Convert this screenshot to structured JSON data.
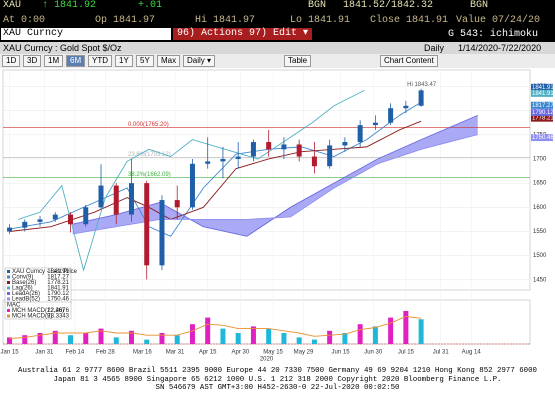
{
  "header": {
    "symbol": "XAU",
    "price": "↑ 1841.92",
    "change": "+.01",
    "source": "BGN",
    "bid_ask": "1841.52/1842.32",
    "source2": "BGN",
    "stats": [
      "At 0:00",
      "Op 1841.97",
      "Hi 1841.97",
      "Lo 1841.91",
      "Close 1841.91",
      "Value 07/24/20"
    ]
  },
  "toolbar": {
    "ticker": "XAU Curncy",
    "actions": "96) Actions ▾",
    "edit": "97) Edit ▾",
    "template": "G 543: ichimoku",
    "description": "XAU Curncy : Gold Spot $/Oz",
    "frequency": "Daily",
    "range": "1/14/2020-7/22/2020",
    "periods": [
      "1D",
      "3D",
      "1M",
      "6M",
      "YTD",
      "1Y",
      "5Y",
      "Max",
      "Daily ▾"
    ],
    "selected": "6M",
    "table": "Table",
    "content": "Chart Content"
  },
  "chart_data": {
    "type": "candlestick",
    "up_color": "#1f5fa8",
    "down_color": "#b01c2e",
    "xlim": [
      "2020-01-12",
      "2020-09-10"
    ],
    "ylim": [
      1429,
      1884
    ],
    "yticks": [
      1450,
      1500,
      1550,
      1600,
      1650,
      1700,
      1750,
      1800,
      1850
    ],
    "xticks": [
      {
        "value": "2020-01-15",
        "label": "Jan 15"
      },
      {
        "value": "2020-01-31",
        "label": "Jan 31"
      },
      {
        "value": "2020-02-14",
        "label": "Feb 14"
      },
      {
        "value": "2020-02-28",
        "label": "Feb 28"
      },
      {
        "value": "2020-03-16",
        "label": "Mar 16"
      },
      {
        "value": "2020-03-31",
        "label": "Mar 31"
      },
      {
        "value": "2020-04-15",
        "label": "Apr 15"
      },
      {
        "value": "2020-04-30",
        "label": "Apr 30"
      },
      {
        "value": "2020-05-15",
        "label": "May 15"
      },
      {
        "value": "2020-05-29",
        "label": "May 29"
      },
      {
        "value": "2020-06-15",
        "label": "Jun 15"
      },
      {
        "value": "2020-06-30",
        "label": "Jun 30"
      },
      {
        "value": "2020-07-15",
        "label": "Jul 15"
      },
      {
        "value": "2020-07-31",
        "label": "Jul 31"
      },
      {
        "value": "2020-08-14",
        "label": "Aug 14"
      }
    ],
    "year_label": "2020",
    "grid": true,
    "x": [
      "2020-01-15",
      "2020-01-22",
      "2020-01-29",
      "2020-02-05",
      "2020-02-12",
      "2020-02-19",
      "2020-02-26",
      "2020-03-04",
      "2020-03-11",
      "2020-03-18",
      "2020-03-25",
      "2020-04-01",
      "2020-04-08",
      "2020-04-15",
      "2020-04-22",
      "2020-04-29",
      "2020-05-06",
      "2020-05-13",
      "2020-05-20",
      "2020-05-27",
      "2020-06-03",
      "2020-06-10",
      "2020-06-17",
      "2020-06-24",
      "2020-07-01",
      "2020-07-08",
      "2020-07-15",
      "2020-07-22"
    ],
    "open": [
      1550,
      1558,
      1570,
      1575,
      1585,
      1565,
      1600,
      1645,
      1585,
      1650,
      1480,
      1615,
      1600,
      1690,
      1695,
      1700,
      1705,
      1735,
      1720,
      1730,
      1705,
      1685,
      1728,
      1735,
      1770,
      1775,
      1805,
      1810
    ],
    "high": [
      1565,
      1575,
      1582,
      1590,
      1590,
      1605,
      1689,
      1650,
      1700,
      1655,
      1625,
      1645,
      1700,
      1745,
      1725,
      1735,
      1740,
      1760,
      1745,
      1740,
      1735,
      1740,
      1745,
      1780,
      1790,
      1815,
      1820,
      1845
    ],
    "low": [
      1545,
      1550,
      1560,
      1570,
      1548,
      1560,
      1595,
      1565,
      1570,
      1451,
      1470,
      1575,
      1595,
      1680,
      1660,
      1680,
      1695,
      1705,
      1700,
      1695,
      1670,
      1680,
      1715,
      1725,
      1760,
      1770,
      1795,
      1808
    ],
    "close": [
      1558,
      1570,
      1575,
      1585,
      1565,
      1600,
      1645,
      1585,
      1650,
      1480,
      1615,
      1600,
      1690,
      1695,
      1700,
      1705,
      1735,
      1720,
      1730,
      1705,
      1685,
      1728,
      1735,
      1770,
      1775,
      1805,
      1810,
      1841.91
    ],
    "price_name": "XAU Curncy - Last Price",
    "high_note": "Hi 1843.47",
    "high_note_value": 1843.47,
    "high_note_x": "2020-07-22",
    "series": [
      {
        "name": "Conv(9)",
        "color": "#3a86d0",
        "x": [
          "2020-01-15",
          "2020-02-03",
          "2020-02-23",
          "2020-03-09",
          "2020-03-19",
          "2020-03-29",
          "2020-04-13",
          "2020-04-28",
          "2020-05-13",
          "2020-05-28",
          "2020-06-12",
          "2020-06-27",
          "2020-07-12",
          "2020-07-22"
        ],
        "values": [
          1555,
          1570,
          1610,
          1640,
          1560,
          1540,
          1640,
          1710,
          1720,
          1725,
          1705,
          1740,
          1790,
          1817.27
        ]
      },
      {
        "name": "Base(26)",
        "color": "#8b1a1a",
        "x": [
          "2020-01-15",
          "2020-02-03",
          "2020-02-23",
          "2020-03-09",
          "2020-03-19",
          "2020-03-29",
          "2020-04-13",
          "2020-04-28",
          "2020-05-13",
          "2020-05-28",
          "2020-06-12",
          "2020-06-27",
          "2020-07-12",
          "2020-07-22"
        ],
        "values": [
          1550,
          1560,
          1590,
          1620,
          1600,
          1575,
          1600,
          1680,
          1700,
          1715,
          1720,
          1725,
          1760,
          1778.21
        ]
      },
      {
        "name": "Lag(26)",
        "color": "#4fb0c6",
        "x": [
          "2020-01-19",
          "2020-01-29",
          "2020-02-08",
          "2020-02-18",
          "2020-02-28",
          "2020-03-09",
          "2020-03-19",
          "2020-03-29",
          "2020-04-08",
          "2020-04-23",
          "2020-05-08",
          "2020-05-23",
          "2020-06-02",
          "2020-06-12",
          "2020-06-26"
        ],
        "values": [
          1575,
          1590,
          1645,
          1470,
          1620,
          1695,
          1720,
          1705,
          1740,
          1720,
          1700,
          1745,
          1775,
          1810,
          1841.91
        ]
      },
      {
        "name": "LeadA(26)",
        "color": "#6a6ae0",
        "x": [
          "2020-02-13",
          "2020-03-04",
          "2020-03-24",
          "2020-04-13",
          "2020-05-03",
          "2020-05-23",
          "2020-06-12",
          "2020-07-02",
          "2020-07-22",
          "2020-08-17"
        ],
        "values": [
          1565,
          1585,
          1610,
          1560,
          1540,
          1600,
          1650,
          1700,
          1740,
          1790.12
        ]
      },
      {
        "name": "LeadB(52)",
        "color": "#9090f0",
        "x": [
          "2020-02-13",
          "2020-03-04",
          "2020-03-24",
          "2020-04-13",
          "2020-05-03",
          "2020-05-23",
          "2020-06-12",
          "2020-07-02",
          "2020-07-22",
          "2020-08-17"
        ],
        "values": [
          1545,
          1560,
          1575,
          1575,
          1575,
          1580,
          1640,
          1690,
          1720,
          1750.46
        ]
      }
    ],
    "cloud_color": "#9a9af5",
    "ref_lines": [
      {
        "value": 1765.2,
        "label": "0.000(1765.20)",
        "color": "#d03030"
      },
      {
        "value": 1703.12,
        "label": "23.6%(1703.12)",
        "color": "#b0b0b0"
      },
      {
        "value": 1662.09,
        "label": "38.2%(1662.09)",
        "color": "#40b040"
      }
    ],
    "macd": {
      "title": "MAC",
      "ylim": [
        0,
        40
      ],
      "up_color": "#e020c0",
      "down_color": "#20b8d8",
      "line_color": "#e89030",
      "hist_name": "MCH MACD(12,26)",
      "line_name": "MCH MACD(9)",
      "hist": [
        6,
        8,
        10,
        12,
        8,
        10,
        14,
        6,
        12,
        4,
        10,
        8,
        18,
        24,
        14,
        10,
        16,
        14,
        10,
        6,
        4,
        12,
        10,
        18,
        16,
        24,
        30,
        22.4676
      ],
      "signal": [
        5,
        6,
        8,
        10,
        10,
        10,
        12,
        10,
        10,
        8,
        8,
        8,
        12,
        18,
        17,
        14,
        14,
        14,
        12,
        10,
        7,
        8,
        9,
        13,
        15,
        19,
        25,
        23.3343
      ]
    }
  },
  "footer": [
    "Australia 61 2 9777 8600 Brazil 5511 2395 9000 Europe 44 20 7330 7500 Germany 49 69 9204 1210 Hong Kong 852 2977 6000",
    "Japan 81 3 4565 8900     Singapore 65 6212 1000     U.S. 1 212 318 2000     Copyright 2020 Bloomberg Finance L.P.",
    "SN 546679 AST  GMT+3:00 H452-2630-0 22-Jul-2020 00:02:50"
  ]
}
